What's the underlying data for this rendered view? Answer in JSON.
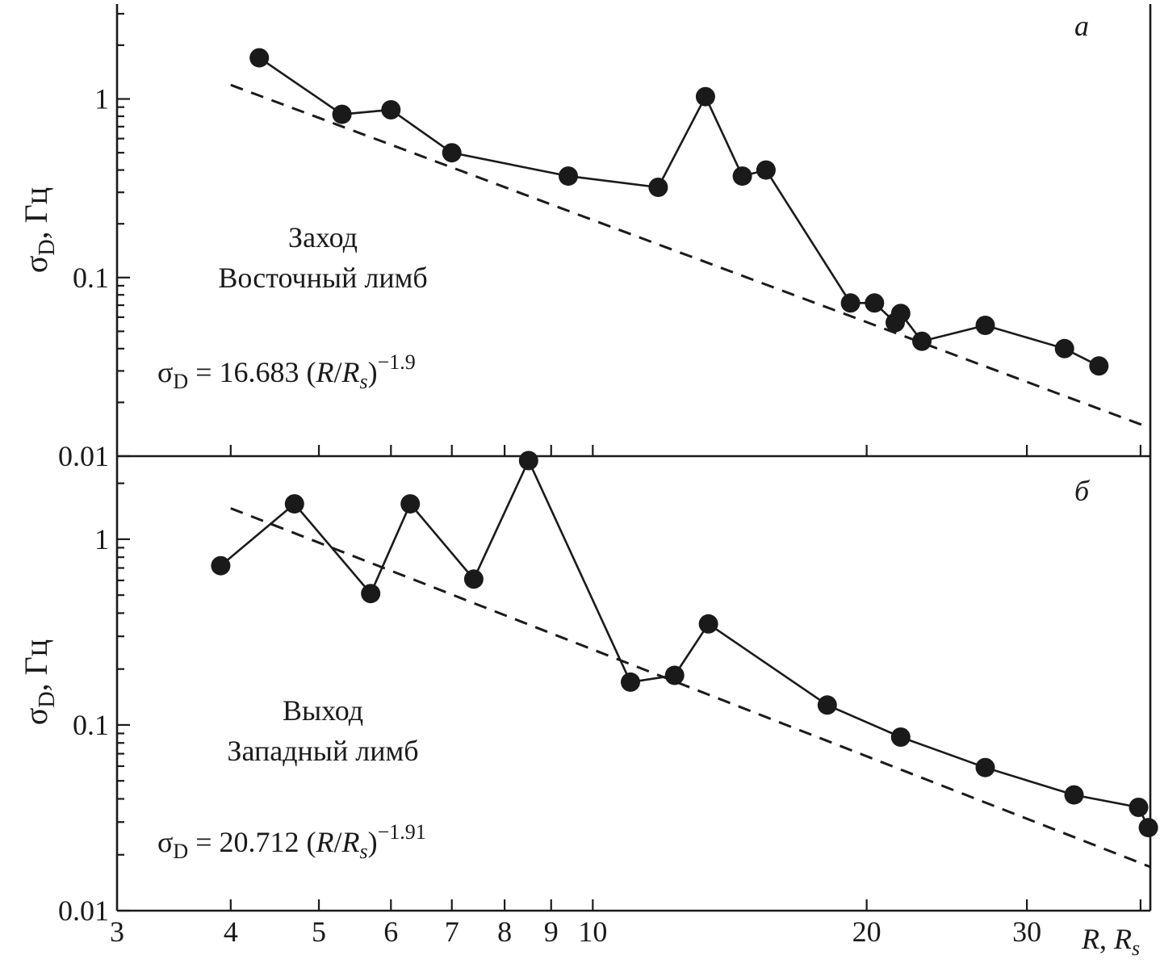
{
  "chart_data": [
    {
      "type": "scatter",
      "panel_label": "а",
      "ylabel_main": "σ",
      "ylabel_sub": "D",
      "ylabel_unit": ", Гц",
      "yscale": "log",
      "xscale": "log",
      "xlim": [
        3,
        41
      ],
      "ylim": [
        0.01,
        3.4
      ],
      "y_ticks": [
        {
          "value": 1,
          "label": "1"
        },
        {
          "value": 0.1,
          "label": "0.1"
        },
        {
          "value": 0.01,
          "label": "0.01"
        }
      ],
      "annotation_lines": [
        "Заход",
        "Восточный лимб"
      ],
      "formula": {
        "prefix_main": "σ",
        "prefix_sub": "D",
        "middle": " = 16.683 (",
        "r": "R",
        "slash": "/",
        "rs": "R",
        "rs_sub": "s",
        "close": ")",
        "exponent": "−1.9"
      },
      "fit": {
        "coefficient": 16.683,
        "exponent": -1.9,
        "x_range": [
          4,
          41
        ]
      },
      "series": [
        {
          "x": [
            4.3,
            5.3,
            6.0,
            7.0,
            9.4,
            11.8,
            13.3,
            14.6,
            15.5,
            19.2,
            20.4,
            21.5,
            21.8,
            23.0,
            27.0,
            33.0,
            36.0
          ],
          "y": [
            1.7,
            0.82,
            0.87,
            0.5,
            0.37,
            0.32,
            1.03,
            0.37,
            0.4,
            0.072,
            0.072,
            0.056,
            0.063,
            0.044,
            0.054,
            0.04,
            0.032
          ]
        }
      ]
    },
    {
      "type": "scatter",
      "panel_label": "б",
      "ylabel_main": "σ",
      "ylabel_sub": "D",
      "ylabel_unit": ", Гц",
      "yscale": "log",
      "xscale": "log",
      "xlim": [
        3,
        41
      ],
      "ylim": [
        0.01,
        2.8
      ],
      "y_ticks": [
        {
          "value": 1,
          "label": "1"
        },
        {
          "value": 0.1,
          "label": "0.1"
        },
        {
          "value": 0.01,
          "label": "0.01"
        }
      ],
      "x_ticks": [
        {
          "value": 3,
          "label": "3"
        },
        {
          "value": 4,
          "label": "4"
        },
        {
          "value": 5,
          "label": "5"
        },
        {
          "value": 6,
          "label": "6"
        },
        {
          "value": 7,
          "label": "7"
        },
        {
          "value": 8,
          "label": "8"
        },
        {
          "value": 9,
          "label": "9"
        },
        {
          "value": 10,
          "label": "10"
        },
        {
          "value": 20,
          "label": "20"
        },
        {
          "value": 30,
          "label": "30"
        }
      ],
      "x_minor_ticks": [
        40
      ],
      "xlabel": {
        "r": "R",
        "sep": ", ",
        "rs": "R",
        "rs_sub": "s"
      },
      "annotation_lines": [
        "Выход",
        "Западный лимб"
      ],
      "formula": {
        "prefix_main": "σ",
        "prefix_sub": "D",
        "middle": " = 20.712 (",
        "r": "R",
        "slash": "/",
        "rs": "R",
        "rs_sub": "s",
        "close": ")",
        "exponent": "−1.91"
      },
      "fit": {
        "coefficient": 20.712,
        "exponent": -1.91,
        "x_range": [
          4,
          41
        ]
      },
      "series": [
        {
          "x": [
            3.9,
            4.7,
            5.7,
            6.3,
            7.4,
            8.5,
            11.0,
            12.3,
            13.4,
            18.1,
            21.8,
            27.0,
            33.8,
            39.8,
            40.8
          ],
          "y": [
            0.72,
            1.55,
            0.51,
            1.55,
            0.61,
            2.65,
            0.17,
            0.185,
            0.35,
            0.128,
            0.086,
            0.059,
            0.042,
            0.036,
            0.028
          ]
        }
      ]
    }
  ]
}
